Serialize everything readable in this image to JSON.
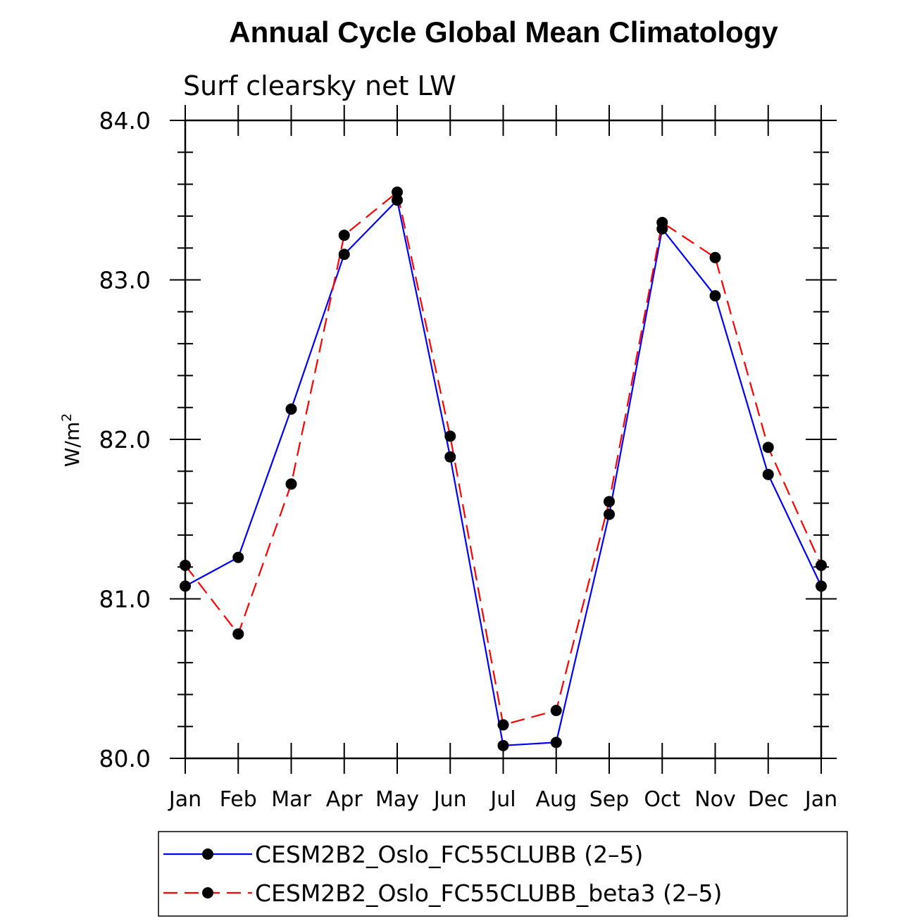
{
  "chart_data": {
    "type": "line",
    "title": "Annual Cycle Global Mean Climatology",
    "subtitle": "Surf clearsky net LW",
    "ylabel": "W/m",
    "ylabel_superscript": "2",
    "xlabel": "",
    "categories": [
      "Jan",
      "Feb",
      "Mar",
      "Apr",
      "May",
      "Jun",
      "Jul",
      "Aug",
      "Sep",
      "Oct",
      "Nov",
      "Dec",
      "Jan"
    ],
    "ylim": [
      80.0,
      84.0
    ],
    "yticks": [
      "80.0",
      "81.0",
      "82.0",
      "83.0",
      "84.0"
    ],
    "series": [
      {
        "name": "CESM2B2_Oslo_FC55CLUBB (2–5)",
        "color": "#0000ff",
        "dash": "solid",
        "values": [
          81.08,
          81.26,
          82.19,
          83.16,
          83.5,
          81.89,
          80.08,
          80.1,
          81.53,
          83.32,
          82.9,
          81.78,
          81.08
        ]
      },
      {
        "name": "CESM2B2_Oslo_FC55CLUBB_beta3 (2–5)",
        "color": "#ff0000",
        "dash": "dashed",
        "values": [
          81.21,
          80.78,
          81.72,
          83.28,
          83.55,
          82.02,
          80.21,
          80.3,
          81.61,
          83.36,
          83.14,
          81.95,
          81.21
        ]
      }
    ],
    "legend": "bottom",
    "grid": false
  }
}
